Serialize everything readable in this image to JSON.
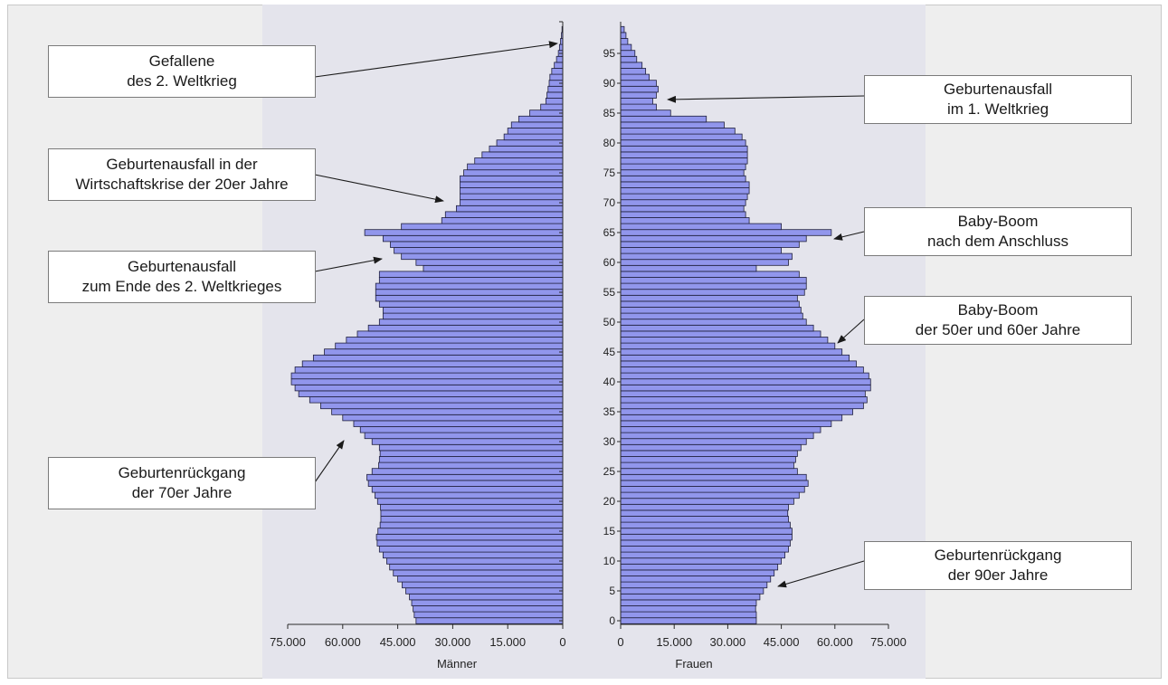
{
  "chart_data": {
    "type": "bar",
    "orientation": "horizontal",
    "subtype": "population-pyramid",
    "ages": [
      0,
      1,
      2,
      3,
      4,
      5,
      6,
      7,
      8,
      9,
      10,
      11,
      12,
      13,
      14,
      15,
      16,
      17,
      18,
      19,
      20,
      21,
      22,
      23,
      24,
      25,
      26,
      27,
      28,
      29,
      30,
      31,
      32,
      33,
      34,
      35,
      36,
      37,
      38,
      39,
      40,
      41,
      42,
      43,
      44,
      45,
      46,
      47,
      48,
      49,
      50,
      51,
      52,
      53,
      54,
      55,
      56,
      57,
      58,
      59,
      60,
      61,
      62,
      63,
      64,
      65,
      66,
      67,
      68,
      69,
      70,
      71,
      72,
      73,
      74,
      75,
      76,
      77,
      78,
      79,
      80,
      81,
      82,
      83,
      84,
      85,
      86,
      87,
      88,
      89,
      90,
      91,
      92,
      93,
      94,
      95,
      96,
      97,
      98,
      99
    ],
    "age_ticks": [
      "0",
      "5",
      "10",
      "15",
      "20",
      "25",
      "30",
      "35",
      "40",
      "45",
      "50",
      "55",
      "60",
      "65",
      "70",
      "75",
      "80",
      "85",
      "90",
      "95"
    ],
    "series": [
      {
        "name": "Männer",
        "values": [
          40000,
          40500,
          40800,
          41200,
          41800,
          42800,
          43800,
          45000,
          46200,
          47200,
          48000,
          49000,
          50000,
          50600,
          50800,
          50400,
          49800,
          49600,
          49600,
          49700,
          50500,
          51200,
          52000,
          53000,
          53400,
          52000,
          50200,
          50000,
          49800,
          50000,
          52000,
          54000,
          55200,
          57000,
          60000,
          63000,
          66000,
          69000,
          72000,
          73000,
          74000,
          74000,
          73000,
          71000,
          68000,
          65000,
          62000,
          59000,
          56000,
          53000,
          50000,
          49000,
          49000,
          50000,
          51000,
          51000,
          51000,
          50000,
          50000,
          38000,
          40000,
          44000,
          46000,
          47000,
          49000,
          54000,
          44000,
          33000,
          32000,
          29000,
          28000,
          28000,
          28000,
          28000,
          28000,
          27000,
          26000,
          24000,
          22000,
          20000,
          18000,
          16000,
          15000,
          14000,
          12000,
          9000,
          6000,
          4600,
          4300,
          4000,
          3700,
          3500,
          3000,
          2300,
          1700,
          1200,
          900,
          600,
          350,
          200
        ]
      },
      {
        "name": "Frauen",
        "values": [
          38000,
          38000,
          37800,
          38000,
          39000,
          40000,
          41000,
          42000,
          43000,
          44000,
          45000,
          46000,
          47000,
          47500,
          48000,
          48000,
          47500,
          47000,
          46800,
          47000,
          48500,
          50000,
          51500,
          52500,
          52000,
          49500,
          48500,
          49000,
          49500,
          50500,
          52000,
          54000,
          56000,
          59000,
          62000,
          65000,
          68000,
          69000,
          68500,
          70000,
          70000,
          69500,
          68000,
          66000,
          64000,
          62000,
          60000,
          58000,
          56000,
          54000,
          52000,
          51000,
          50500,
          50000,
          49500,
          51500,
          52000,
          52000,
          50000,
          38000,
          47000,
          48000,
          45000,
          50000,
          52000,
          59000,
          45000,
          36000,
          35000,
          34500,
          35000,
          35500,
          36000,
          36000,
          35000,
          34500,
          35000,
          35500,
          35500,
          35500,
          35000,
          34000,
          32000,
          29000,
          24000,
          14000,
          10000,
          9000,
          10000,
          10500,
          10000,
          8000,
          7000,
          6000,
          4500,
          4000,
          3000,
          2000,
          1500,
          1000
        ]
      }
    ],
    "xlim": [
      0,
      75000
    ],
    "x_ticks_left": [
      "75.000",
      "60.000",
      "45.000",
      "30.000",
      "15.000",
      "0"
    ],
    "x_ticks_right": [
      "0",
      "15.000",
      "30.000",
      "45.000",
      "60.000",
      "75.000"
    ],
    "xlabel_left": "Männer",
    "xlabel_right": "Frauen",
    "bar_color": "#9196ec",
    "bar_stroke": "#1e1e3c",
    "annotations": [
      {
        "lines": [
          "Gefallene",
          "des 2. Weltkrieg"
        ],
        "side": "Männer",
        "age": 96
      },
      {
        "lines": [
          "Geburtenausfall in der",
          "Wirtschaftskrise der 20er Jahre"
        ],
        "side": "Männer",
        "age": 70
      },
      {
        "lines": [
          "Geburtenausfall",
          "zum Ende des 2. Weltkrieges"
        ],
        "side": "Männer",
        "age": 61
      },
      {
        "lines": [
          "Geburtenrückgang",
          "der 70er Jahre"
        ],
        "side": "Männer",
        "age": 30
      },
      {
        "lines": [
          "Geburtenausfall",
          "im 1. Weltkrieg"
        ],
        "side": "Frauen",
        "age": 87
      },
      {
        "lines": [
          "Baby-Boom",
          "nach dem Anschluss"
        ],
        "side": "Frauen",
        "age": 65
      },
      {
        "lines": [
          "Baby-Boom",
          "der 50er und 60er Jahre"
        ],
        "side": "Frauen",
        "age": 48
      },
      {
        "lines": [
          "Geburtenrückgang",
          "der 90er Jahre"
        ],
        "side": "Frauen",
        "age": 6
      }
    ]
  }
}
